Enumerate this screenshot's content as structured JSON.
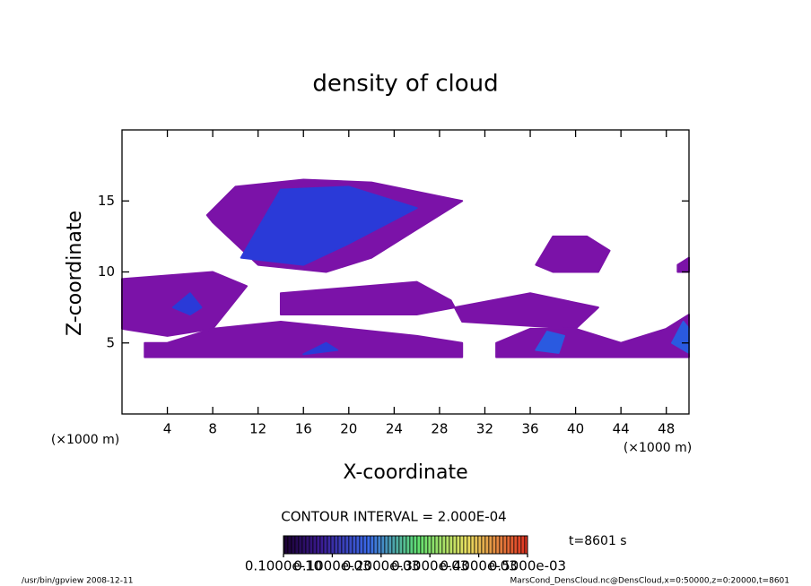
{
  "chart_data": {
    "type": "contour",
    "title": "density of cloud",
    "x_label": "X-coordinate",
    "y_label": "Z-coordinate",
    "x_unit": "(×1000 m)",
    "y_unit": "(×1000 m)",
    "xlim": [
      0,
      50
    ],
    "ylim": [
      0,
      20
    ],
    "xticks": [
      4,
      8,
      12,
      16,
      20,
      24,
      28,
      32,
      36,
      40,
      44,
      48
    ],
    "yticks": [
      5,
      10,
      15
    ],
    "regions": [
      {
        "x": [
          7.5,
          10,
          16,
          22,
          30,
          26,
          22,
          18,
          12,
          10,
          8
        ],
        "z": [
          14,
          16,
          16.5,
          16.3,
          15,
          13,
          11,
          10,
          10.5,
          12,
          13.5
        ],
        "color": "#7b12a8"
      },
      {
        "x": [
          0,
          8,
          11,
          8,
          4,
          0
        ],
        "z": [
          9.5,
          10,
          9,
          6,
          5.5,
          6
        ],
        "color": "#7b12a8"
      },
      {
        "x": [
          2,
          30,
          30,
          26,
          20,
          14,
          8,
          4,
          2
        ],
        "z": [
          4,
          4,
          5,
          5.5,
          6,
          6.5,
          6,
          5,
          5
        ],
        "color": "#7b12a8"
      },
      {
        "x": [
          14,
          26,
          29,
          30,
          40,
          42,
          36,
          26,
          20,
          14
        ],
        "z": [
          8.5,
          9.3,
          8,
          6.5,
          6,
          7.5,
          8.5,
          7,
          7,
          7
        ],
        "color": "#7b12a8"
      },
      {
        "x": [
          33,
          44,
          50,
          50,
          48,
          44,
          40,
          36,
          33
        ],
        "z": [
          4,
          4,
          4,
          7,
          6,
          5,
          6,
          6,
          5
        ],
        "color": "#7b12a8"
      },
      {
        "x": [
          36.5,
          38,
          41,
          43,
          42,
          38
        ],
        "z": [
          10.5,
          12.5,
          12.5,
          11.5,
          10,
          10
        ],
        "color": "#7b12a8"
      },
      {
        "x": [
          49,
          50,
          50,
          49
        ],
        "z": [
          10.5,
          11,
          10,
          10
        ],
        "color": "#7b12a8"
      },
      {
        "x": [
          10.5,
          14,
          20,
          26,
          20,
          16
        ],
        "z": [
          11,
          15.8,
          16,
          14.5,
          12,
          10.5
        ],
        "color": "#2a3ad8"
      },
      {
        "x": [
          36.5,
          37.5,
          39,
          38.5
        ],
        "z": [
          4.5,
          5.8,
          5.5,
          4.3
        ],
        "color": "#2a5ae0"
      },
      {
        "x": [
          48.5,
          49.5,
          50,
          50
        ],
        "z": [
          5,
          6.5,
          6,
          4.3
        ],
        "color": "#2a5ae0"
      },
      {
        "x": [
          4.5,
          6,
          7,
          6
        ],
        "z": [
          7.5,
          8.5,
          7.5,
          7
        ],
        "color": "#2a3ad8"
      },
      {
        "x": [
          16,
          18,
          19
        ],
        "z": [
          4.2,
          5,
          4.5
        ],
        "color": "#2a3ad8"
      }
    ],
    "contour_interval": "CONTOUR INTERVAL = 2.000E-04",
    "colorbar_ticks": [
      {
        "value": 1e-11,
        "label": "0.1000e-10"
      },
      {
        "value": 0.0001,
        "label": "0.1000e-03"
      },
      {
        "value": 0.0002,
        "label": "0.2000e-03"
      },
      {
        "value": 0.0003,
        "label": "0.3000e-03"
      },
      {
        "value": 0.0004,
        "label": "0.4000e-03"
      },
      {
        "value": 0.0005,
        "label": "0.5000e-03"
      }
    ],
    "colorbar_lim": [
      0,
      0.0005
    ],
    "time_label": "t=8601 s",
    "footer_left": "/usr/bin/gpview   2008-12-11",
    "footer_right": "MarsCond_DensCloud.nc@DensCloud,x=0:50000,z=0:20000,t=8601"
  }
}
